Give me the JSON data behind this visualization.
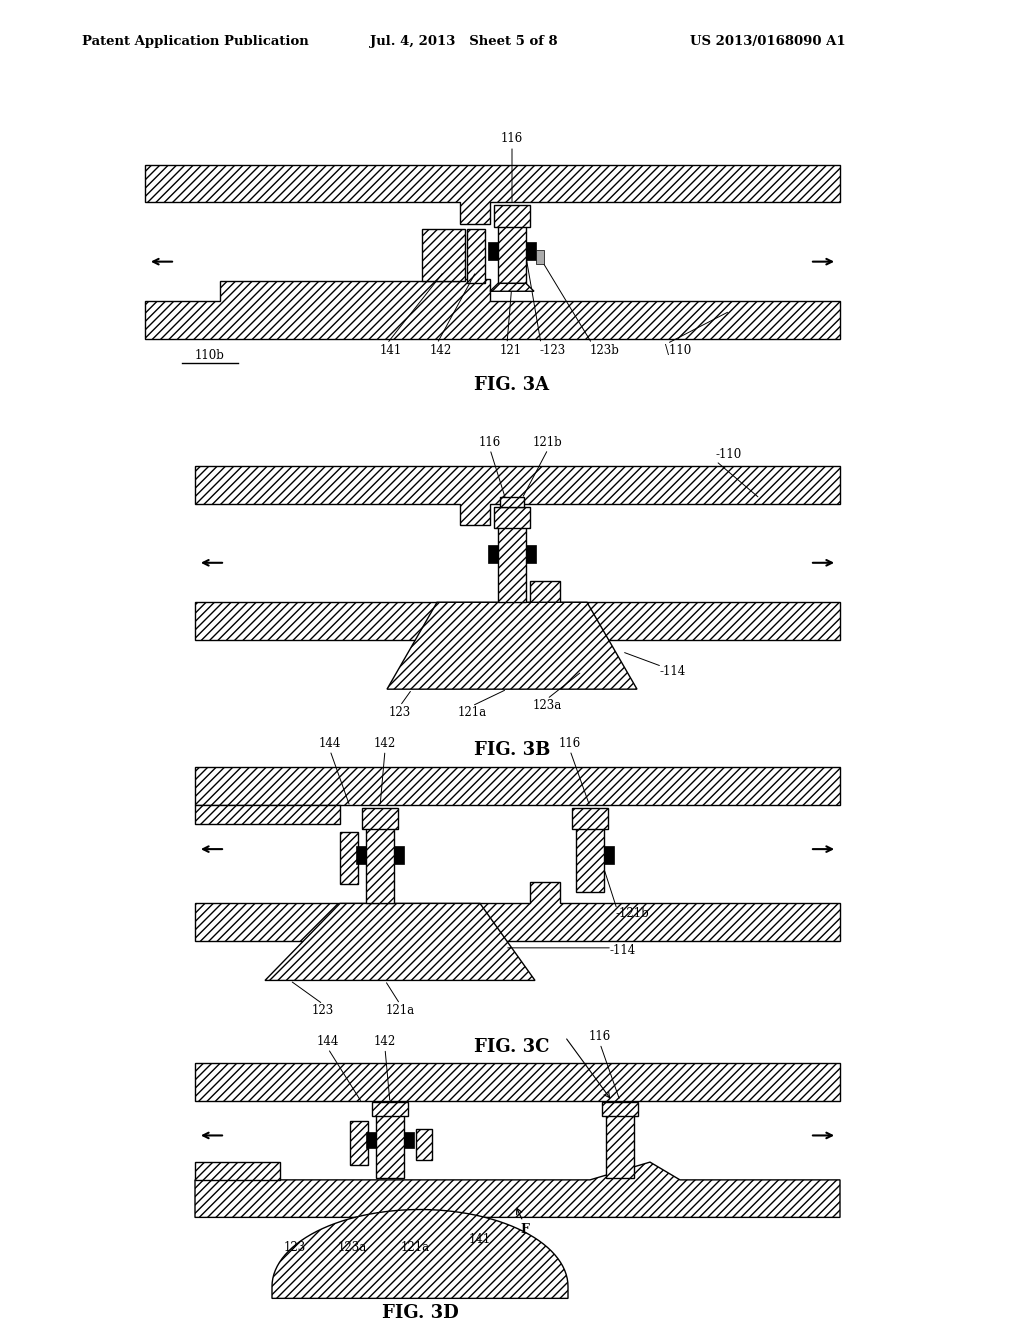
{
  "background_color": "#ffffff",
  "header_left": "Patent Application Publication",
  "header_mid": "Jul. 4, 2013   Sheet 5 of 8",
  "header_right": "US 2013/0168090 A1",
  "figures": [
    "FIG. 3A",
    "FIG. 3B",
    "FIG. 3C",
    "FIG. 3D"
  ]
}
